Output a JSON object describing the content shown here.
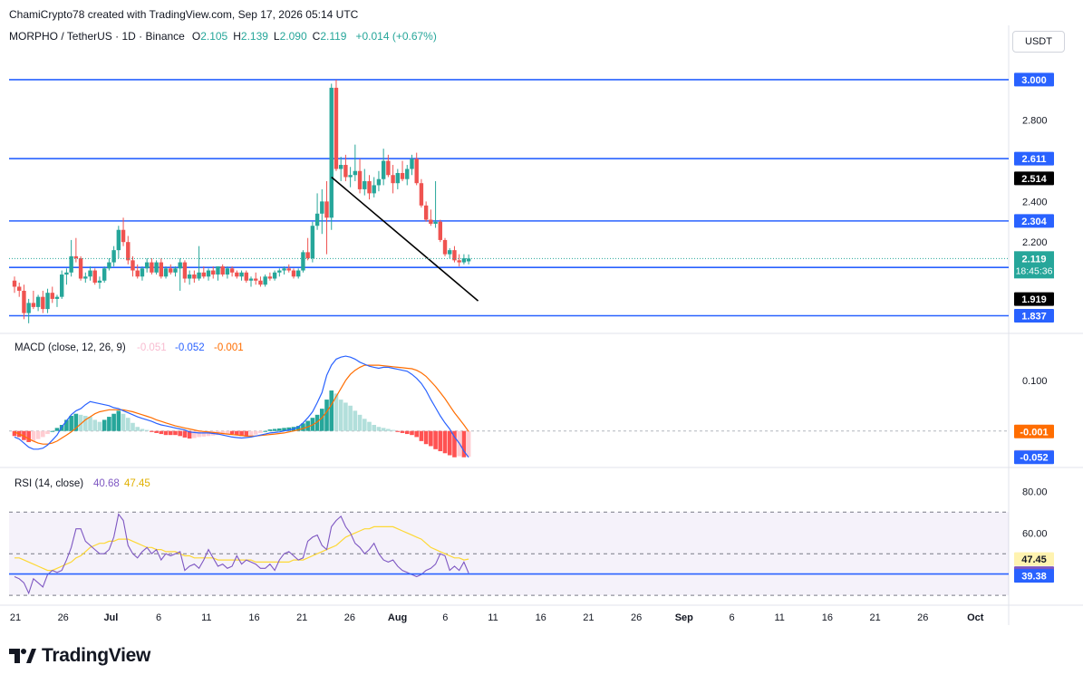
{
  "header": {
    "caption": "ChamiCrypto78 created with TradingView.com, Sep 17, 2026 05:14 UTC",
    "symbol": "MORPHO / TetherUS · 1D · Binance",
    "ohlc": [
      {
        "k": "O",
        "v": "2.105"
      },
      {
        "k": "H",
        "v": "2.139"
      },
      {
        "k": "L",
        "v": "2.090"
      },
      {
        "k": "C",
        "v": "2.119"
      }
    ],
    "change": "+0.014 (+0.67%)"
  },
  "currency_button": "USDT",
  "footer": {
    "brand": "TradingView"
  },
  "colors": {
    "up": "#26a69a",
    "down": "#ef5350",
    "level": "#2962ff",
    "macd": "#2962ff",
    "signal": "#ff6d00",
    "rsi": "#7e57c2",
    "rsi_ma": "#fdd835"
  },
  "chart_data": [
    {
      "type": "candlestick",
      "title": "MORPHO / TetherUS · 1D · Binance",
      "x_tick_labels": [
        "21",
        "26",
        "Jul",
        "6",
        "11",
        "16",
        "21",
        "26",
        "Aug",
        "6",
        "11",
        "16",
        "21",
        "26",
        "Sep",
        "6",
        "11",
        "16",
        "21",
        "26",
        "Oct"
      ],
      "y_tick_labels": [
        "2.800",
        "2.400",
        "2.200"
      ],
      "ylim": [
        1.75,
        3.08
      ],
      "candles": [
        [
          2.01,
          2.03,
          1.95,
          1.98
        ],
        [
          1.98,
          2.0,
          1.93,
          1.96
        ],
        [
          1.96,
          1.99,
          1.82,
          1.85
        ],
        [
          1.85,
          1.92,
          1.8,
          1.9
        ],
        [
          1.9,
          1.96,
          1.87,
          1.88
        ],
        [
          1.88,
          1.94,
          1.86,
          1.93
        ],
        [
          1.93,
          1.96,
          1.85,
          1.87
        ],
        [
          1.87,
          1.97,
          1.85,
          1.95
        ],
        [
          1.95,
          1.98,
          1.9,
          1.92
        ],
        [
          1.92,
          1.94,
          1.88,
          1.93
        ],
        [
          1.93,
          2.06,
          1.92,
          2.04
        ],
        [
          2.04,
          2.07,
          1.99,
          2.05
        ],
        [
          2.05,
          2.21,
          2.03,
          2.13
        ],
        [
          2.13,
          2.22,
          2.1,
          2.12
        ],
        [
          2.12,
          2.13,
          2.01,
          2.02
        ],
        [
          2.02,
          2.05,
          2.0,
          2.03
        ],
        [
          2.03,
          2.08,
          2.01,
          2.06
        ],
        [
          2.06,
          2.07,
          1.99,
          2.0
        ],
        [
          2.0,
          2.03,
          1.97,
          2.01
        ],
        [
          2.01,
          2.08,
          2.0,
          2.07
        ],
        [
          2.07,
          2.12,
          2.06,
          2.1
        ],
        [
          2.1,
          2.18,
          2.08,
          2.16
        ],
        [
          2.16,
          2.28,
          2.12,
          2.26
        ],
        [
          2.26,
          2.32,
          2.18,
          2.2
        ],
        [
          2.2,
          2.23,
          2.09,
          2.11
        ],
        [
          2.11,
          2.13,
          2.03,
          2.06
        ],
        [
          2.06,
          2.09,
          2.02,
          2.03
        ],
        [
          2.03,
          2.08,
          2.01,
          2.07
        ],
        [
          2.07,
          2.12,
          2.05,
          2.1
        ],
        [
          2.1,
          2.12,
          2.04,
          2.05
        ],
        [
          2.05,
          2.11,
          2.04,
          2.1
        ],
        [
          2.1,
          2.12,
          2.02,
          2.03
        ],
        [
          2.03,
          2.08,
          2.02,
          2.07
        ],
        [
          2.07,
          2.09,
          2.04,
          2.05
        ],
        [
          2.05,
          2.08,
          2.03,
          2.07
        ],
        [
          2.07,
          2.12,
          1.96,
          2.1
        ],
        [
          2.1,
          2.11,
          2.0,
          2.02
        ],
        [
          2.02,
          2.06,
          1.99,
          2.04
        ],
        [
          2.04,
          2.06,
          2.0,
          2.02
        ],
        [
          2.02,
          2.18,
          2.01,
          2.05
        ],
        [
          2.05,
          2.08,
          2.02,
          2.03
        ],
        [
          2.03,
          2.07,
          2.01,
          2.06
        ],
        [
          2.06,
          2.08,
          2.02,
          2.04
        ],
        [
          2.04,
          2.07,
          2.01,
          2.08
        ],
        [
          2.08,
          2.09,
          2.03,
          2.04
        ],
        [
          2.04,
          2.08,
          2.02,
          2.07
        ],
        [
          2.07,
          2.08,
          2.03,
          2.05
        ],
        [
          2.05,
          2.06,
          2.02,
          2.03
        ],
        [
          2.03,
          2.06,
          2.01,
          2.05
        ],
        [
          2.05,
          2.06,
          2.0,
          2.01
        ],
        [
          2.01,
          2.03,
          1.98,
          2.02
        ],
        [
          2.02,
          2.05,
          1.99,
          2.01
        ],
        [
          2.01,
          2.03,
          1.98,
          1.99
        ],
        [
          1.99,
          2.04,
          1.98,
          2.03
        ],
        [
          2.03,
          2.05,
          2.01,
          2.02
        ],
        [
          2.02,
          2.06,
          2.01,
          2.05
        ],
        [
          2.05,
          2.07,
          2.03,
          2.06
        ],
        [
          2.06,
          2.08,
          2.04,
          2.07
        ],
        [
          2.07,
          2.09,
          2.05,
          2.06
        ],
        [
          2.06,
          2.07,
          2.02,
          2.03
        ],
        [
          2.03,
          2.07,
          2.02,
          2.06
        ],
        [
          2.06,
          2.16,
          2.05,
          2.15
        ],
        [
          2.15,
          2.22,
          2.11,
          2.12
        ],
        [
          2.12,
          2.3,
          2.1,
          2.28
        ],
        [
          2.28,
          2.44,
          2.26,
          2.34
        ],
        [
          2.34,
          2.46,
          2.24,
          2.4
        ],
        [
          2.4,
          2.5,
          2.14,
          2.32
        ],
        [
          2.32,
          2.98,
          2.26,
          2.96
        ],
        [
          2.96,
          3.0,
          2.55,
          2.56
        ],
        [
          2.56,
          2.62,
          2.5,
          2.58
        ],
        [
          2.58,
          2.63,
          2.5,
          2.52
        ],
        [
          2.52,
          2.57,
          2.47,
          2.53
        ],
        [
          2.53,
          2.68,
          2.5,
          2.55
        ],
        [
          2.55,
          2.61,
          2.44,
          2.46
        ],
        [
          2.46,
          2.56,
          2.43,
          2.5
        ],
        [
          2.5,
          2.53,
          2.41,
          2.44
        ],
        [
          2.44,
          2.52,
          2.42,
          2.48
        ],
        [
          2.48,
          2.55,
          2.45,
          2.51
        ],
        [
          2.51,
          2.66,
          2.48,
          2.6
        ],
        [
          2.6,
          2.63,
          2.52,
          2.53
        ],
        [
          2.53,
          2.58,
          2.44,
          2.49
        ],
        [
          2.49,
          2.56,
          2.46,
          2.54
        ],
        [
          2.54,
          2.6,
          2.5,
          2.51
        ],
        [
          2.51,
          2.58,
          2.48,
          2.56
        ],
        [
          2.56,
          2.63,
          2.53,
          2.61
        ],
        [
          2.61,
          2.64,
          2.48,
          2.49
        ],
        [
          2.49,
          2.51,
          2.37,
          2.38
        ],
        [
          2.38,
          2.4,
          2.3,
          2.31
        ],
        [
          2.31,
          2.36,
          2.28,
          2.29
        ],
        [
          2.29,
          2.5,
          2.27,
          2.3
        ],
        [
          2.3,
          2.31,
          2.2,
          2.21
        ],
        [
          2.21,
          2.22,
          2.13,
          2.14
        ],
        [
          2.14,
          2.17,
          2.12,
          2.16
        ],
        [
          2.16,
          2.18,
          2.1,
          2.11
        ],
        [
          2.11,
          2.14,
          2.08,
          2.1
        ],
        [
          2.1,
          2.14,
          2.09,
          2.12
        ],
        [
          2.105,
          2.139,
          2.09,
          2.119
        ]
      ],
      "levels": [
        {
          "value": 3.0,
          "label": "3.000",
          "kind": "level"
        },
        {
          "value": 2.611,
          "label": "2.611",
          "kind": "level"
        },
        {
          "value": 2.304,
          "label": "2.304",
          "kind": "level"
        },
        {
          "value": 2.075,
          "label": "2.075",
          "kind": "level"
        },
        {
          "value": 1.837,
          "label": "1.837",
          "kind": "level"
        }
      ],
      "trendline": {
        "from": [
          67,
          2.52
        ],
        "to": [
          98,
          1.91
        ]
      },
      "last_price": {
        "value": 2.119,
        "label": "2.119",
        "countdown": "18:45:36"
      },
      "axis_badges": [
        {
          "value": 2.514,
          "label": "2.514"
        },
        {
          "value": 1.919,
          "label": "1.919"
        }
      ]
    },
    {
      "type": "macd",
      "legend": {
        "name": "MACD (close, 12, 26, 9)",
        "histogram": "-0.051",
        "macd": "-0.052",
        "signal": "-0.001"
      },
      "y_tick_labels": [
        "0.100"
      ],
      "ylim": [
        -0.065,
        0.175
      ],
      "histogram": [
        -0.01,
        -0.012,
        -0.018,
        -0.022,
        -0.02,
        -0.016,
        -0.012,
        -0.006,
        0.0,
        0.006,
        0.012,
        0.022,
        0.03,
        0.034,
        0.032,
        0.03,
        0.028,
        0.022,
        0.018,
        0.022,
        0.028,
        0.034,
        0.04,
        0.034,
        0.026,
        0.016,
        0.008,
        0.004,
        0.002,
        -0.002,
        -0.004,
        -0.006,
        -0.008,
        -0.008,
        -0.008,
        -0.01,
        -0.013,
        -0.015,
        -0.014,
        -0.012,
        -0.011,
        -0.01,
        -0.009,
        -0.008,
        -0.007,
        -0.006,
        -0.006,
        -0.008,
        -0.01,
        -0.011,
        -0.01,
        -0.007,
        -0.004,
        0.0,
        0.003,
        0.004,
        0.005,
        0.006,
        0.007,
        0.008,
        0.01,
        0.015,
        0.02,
        0.026,
        0.032,
        0.044,
        0.062,
        0.08,
        0.074,
        0.062,
        0.056,
        0.05,
        0.04,
        0.032,
        0.024,
        0.018,
        0.012,
        0.008,
        0.006,
        0.004,
        0.002,
        -0.002,
        -0.004,
        -0.006,
        -0.008,
        -0.012,
        -0.02,
        -0.026,
        -0.03,
        -0.036,
        -0.04,
        -0.044,
        -0.048,
        -0.052,
        -0.05,
        -0.052,
        -0.051
      ],
      "macd": [
        -0.012,
        -0.016,
        -0.024,
        -0.032,
        -0.036,
        -0.036,
        -0.034,
        -0.028,
        -0.018,
        -0.008,
        0.008,
        0.02,
        0.032,
        0.04,
        0.044,
        0.052,
        0.058,
        0.056,
        0.054,
        0.052,
        0.05,
        0.046,
        0.044,
        0.04,
        0.036,
        0.032,
        0.028,
        0.025,
        0.022,
        0.019,
        0.015,
        0.012,
        0.01,
        0.008,
        0.006,
        0.004,
        0.002,
        -0.002,
        -0.003,
        -0.004,
        -0.004,
        -0.004,
        -0.005,
        -0.006,
        -0.008,
        -0.01,
        -0.012,
        -0.013,
        -0.014,
        -0.013,
        -0.012,
        -0.01,
        -0.008,
        -0.006,
        -0.004,
        -0.003,
        -0.002,
        0.0,
        0.002,
        0.004,
        0.008,
        0.016,
        0.026,
        0.038,
        0.056,
        0.076,
        0.11,
        0.13,
        0.142,
        0.146,
        0.148,
        0.146,
        0.142,
        0.136,
        0.132,
        0.128,
        0.126,
        0.124,
        0.126,
        0.126,
        0.124,
        0.122,
        0.12,
        0.118,
        0.112,
        0.104,
        0.094,
        0.08,
        0.062,
        0.046,
        0.03,
        0.016,
        0.004,
        -0.012,
        -0.024,
        -0.04,
        -0.052
      ],
      "signal": [
        -0.002,
        -0.006,
        -0.01,
        -0.016,
        -0.02,
        -0.024,
        -0.026,
        -0.026,
        -0.024,
        -0.02,
        -0.014,
        -0.008,
        -0.002,
        0.006,
        0.014,
        0.022,
        0.028,
        0.034,
        0.038,
        0.04,
        0.042,
        0.042,
        0.042,
        0.042,
        0.04,
        0.038,
        0.035,
        0.032,
        0.029,
        0.026,
        0.022,
        0.019,
        0.016,
        0.013,
        0.01,
        0.008,
        0.006,
        0.004,
        0.002,
        0.0,
        -0.001,
        -0.002,
        -0.003,
        -0.004,
        -0.005,
        -0.006,
        -0.007,
        -0.008,
        -0.009,
        -0.01,
        -0.01,
        -0.01,
        -0.009,
        -0.008,
        -0.007,
        -0.006,
        -0.005,
        -0.004,
        -0.002,
        0.0,
        0.002,
        0.005,
        0.008,
        0.012,
        0.018,
        0.026,
        0.038,
        0.052,
        0.068,
        0.084,
        0.1,
        0.112,
        0.12,
        0.126,
        0.13,
        0.13,
        0.13,
        0.13,
        0.129,
        0.128,
        0.127,
        0.126,
        0.125,
        0.124,
        0.123,
        0.12,
        0.115,
        0.108,
        0.098,
        0.088,
        0.076,
        0.064,
        0.05,
        0.036,
        0.024,
        0.012,
        -0.001
      ],
      "axis_badges": [
        {
          "value": -0.001,
          "label": "-0.001"
        },
        {
          "value": -0.051,
          "label": "-0.051"
        },
        {
          "value": -0.052,
          "label": "-0.052"
        }
      ]
    },
    {
      "type": "rsi",
      "legend": {
        "name": "RSI (14, close)",
        "rsi": "40.68",
        "ma": "47.45"
      },
      "y_tick_labels": [
        "80.00",
        "60.00"
      ],
      "ylim": [
        27,
        88
      ],
      "bands": {
        "upper": 70,
        "middle": 50,
        "lower": 30
      },
      "rsi": [
        39,
        38,
        36,
        31,
        38,
        36,
        34,
        40,
        42,
        41,
        42,
        47,
        53,
        62,
        62,
        56,
        54,
        52,
        50,
        50,
        52,
        58,
        69,
        66,
        54,
        50,
        48,
        51,
        53,
        50,
        52,
        47,
        50,
        49,
        50,
        51,
        42,
        44,
        45,
        43,
        47,
        52,
        48,
        44,
        45,
        43,
        44,
        49,
        45,
        47,
        46,
        45,
        43,
        43,
        45,
        42,
        47,
        50,
        51,
        49,
        47,
        48,
        56,
        58,
        59,
        54,
        52,
        63,
        66,
        68,
        63,
        60,
        55,
        53,
        50,
        52,
        55,
        50,
        47,
        46,
        47,
        44,
        42,
        41,
        40,
        39,
        40,
        42,
        43,
        45,
        50,
        49,
        42,
        44,
        42,
        46,
        40.68
      ],
      "ma": [
        48,
        48,
        47,
        46,
        45,
        44,
        43,
        42,
        42,
        43,
        44,
        45,
        46,
        48,
        49,
        51,
        53,
        54,
        55,
        55,
        56,
        56,
        57,
        57,
        57,
        56,
        55,
        54,
        53,
        53,
        52,
        52,
        51,
        51,
        51,
        50,
        49,
        49,
        48,
        48,
        48,
        48,
        48,
        47,
        47,
        47,
        47,
        47,
        47,
        47,
        47,
        46,
        46,
        46,
        46,
        46,
        46,
        46,
        46,
        47,
        47,
        47,
        48,
        49,
        50,
        51,
        52,
        53,
        54,
        56,
        58,
        59,
        60,
        61,
        62,
        62,
        63,
        63,
        63,
        63,
        63,
        62,
        61,
        60,
        59,
        58,
        57,
        55,
        53,
        52,
        51,
        50,
        49,
        48,
        48,
        47,
        47.45
      ],
      "axis_badges": [
        {
          "value": 47.45,
          "label": "47.45"
        },
        {
          "value": 40.68,
          "label": "40.68"
        },
        {
          "value": 39.38,
          "label": "39.38"
        }
      ]
    }
  ]
}
